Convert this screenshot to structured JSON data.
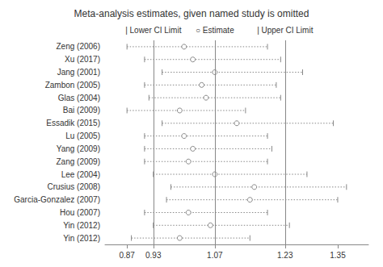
{
  "chart_data": {
    "type": "forest",
    "title": "Meta-analysis estimates, given named study is omitted",
    "categories": [
      "Zeng (2006)",
      "Xu (2017)",
      "Jang (2001)",
      "Zambon (2005)",
      "Glas (2004)",
      "Bai (2009)",
      "Essadik (2015)",
      "Lu (2005)",
      "Yang (2009)",
      "Zang (2009)",
      "Lee (2004)",
      "Crusius (2008)",
      "Garcia-Gonzalez (2007)",
      "Hou (2007)",
      "Yin (2012)",
      "Yin (2012)"
    ],
    "values": [
      1.0,
      1.02,
      1.07,
      1.04,
      1.05,
      0.99,
      1.12,
      1.0,
      1.02,
      1.01,
      1.07,
      1.16,
      1.15,
      1.01,
      1.06,
      0.99
    ],
    "lower": [
      0.87,
      0.91,
      0.95,
      0.91,
      0.92,
      0.87,
      0.95,
      0.91,
      0.91,
      0.91,
      0.93,
      0.97,
      0.96,
      0.91,
      0.93,
      0.88
    ],
    "upper": [
      1.19,
      1.22,
      1.27,
      1.21,
      1.22,
      1.14,
      1.34,
      1.19,
      1.2,
      1.19,
      1.28,
      1.37,
      1.35,
      1.19,
      1.24,
      1.15
    ],
    "reference_lines": [
      0.93,
      1.07,
      1.23
    ],
    "annotations": [
      {
        "text": "| Lower CI Limit",
        "x": 0.93
      },
      {
        "text": "○ Estimate",
        "x": 1.07
      },
      {
        "text": "| Upper CI Limit",
        "x": 1.23
      }
    ],
    "xlim": [
      0.82,
      1.42
    ],
    "xticks": [
      0.87,
      0.93,
      1.07,
      1.23,
      1.35
    ],
    "color": "#888888",
    "marker": "circle",
    "grid": false
  }
}
